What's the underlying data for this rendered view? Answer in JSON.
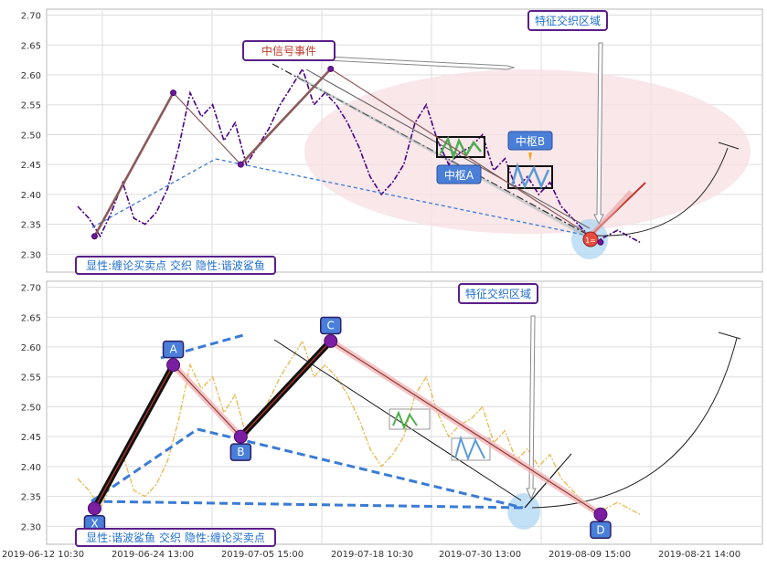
{
  "chart_data": [
    {
      "type": "line",
      "panel": "top",
      "ylim": [
        2.27,
        2.71
      ],
      "y_ticks": [
        "2.70",
        "2.65",
        "2.60",
        "2.55",
        "2.50",
        "2.45",
        "2.40",
        "2.35",
        "2.30"
      ],
      "y_tick_values": [
        2.7,
        2.65,
        2.6,
        2.55,
        2.5,
        2.45,
        2.4,
        2.35,
        2.3
      ],
      "grid": true,
      "price_series": {
        "x": [
          0,
          2,
          4,
          6,
          8,
          10,
          12,
          14,
          16,
          18,
          20,
          22,
          24,
          26,
          28,
          30,
          32,
          34,
          36,
          38,
          40,
          42,
          44,
          46,
          48,
          50,
          52,
          54,
          56,
          58,
          60,
          62,
          64,
          66,
          68,
          70,
          72,
          74,
          76,
          78,
          80,
          82,
          84,
          86,
          88,
          90,
          92,
          94,
          96,
          98,
          100
        ],
        "y": [
          2.38,
          2.36,
          2.33,
          2.37,
          2.42,
          2.36,
          2.35,
          2.37,
          2.41,
          2.48,
          2.57,
          2.53,
          2.55,
          2.49,
          2.52,
          2.45,
          2.48,
          2.51,
          2.55,
          2.58,
          2.61,
          2.55,
          2.57,
          2.55,
          2.52,
          2.48,
          2.43,
          2.4,
          2.42,
          2.45,
          2.52,
          2.55,
          2.49,
          2.45,
          2.47,
          2.48,
          2.5,
          2.44,
          2.46,
          2.41,
          2.43,
          2.4,
          2.42,
          2.38,
          2.36,
          2.34,
          2.32,
          2.33,
          2.34,
          2.33,
          2.32
        ]
      },
      "chan_points": {
        "labels": [
          "",
          "",
          "",
          "",
          ""
        ],
        "x": [
          3,
          17,
          29,
          45,
          93
        ],
        "y": [
          2.33,
          2.57,
          2.45,
          2.61,
          2.32
        ]
      },
      "annotations": {
        "signal_label": "中信号事件",
        "zone_label": "特征交织区域",
        "center_a": "中枢A",
        "center_b": "中枢B",
        "point_marker": "1=",
        "legend_box": "显性:缠论买卖点 交织 隐性:谐波鲨鱼"
      }
    },
    {
      "type": "line",
      "panel": "bottom",
      "ylim": [
        2.27,
        2.71
      ],
      "y_ticks": [
        "2.70",
        "2.65",
        "2.60",
        "2.55",
        "2.50",
        "2.45",
        "2.40",
        "2.35",
        "2.30"
      ],
      "y_tick_values": [
        2.7,
        2.65,
        2.6,
        2.55,
        2.5,
        2.45,
        2.4,
        2.35,
        2.3
      ],
      "x_ticks": [
        "2019-06-12 10:30",
        "2019-06-24 13:00",
        "2019-07-05 15:00",
        "2019-07-18 10:30",
        "2019-07-30 13:00",
        "2019-08-09 15:00",
        "2019-08-21 14:00"
      ],
      "grid": true,
      "price_series": {
        "x": [
          0,
          2,
          4,
          6,
          8,
          10,
          12,
          14,
          16,
          18,
          20,
          22,
          24,
          26,
          28,
          30,
          32,
          34,
          36,
          38,
          40,
          42,
          44,
          46,
          48,
          50,
          52,
          54,
          56,
          58,
          60,
          62,
          64,
          66,
          68,
          70,
          72,
          74,
          76,
          78,
          80,
          82,
          84,
          86,
          88,
          90,
          92,
          94,
          96,
          98,
          100
        ],
        "y": [
          2.38,
          2.36,
          2.33,
          2.37,
          2.42,
          2.36,
          2.35,
          2.37,
          2.41,
          2.48,
          2.57,
          2.53,
          2.55,
          2.49,
          2.52,
          2.45,
          2.48,
          2.51,
          2.55,
          2.58,
          2.61,
          2.55,
          2.57,
          2.55,
          2.52,
          2.48,
          2.43,
          2.4,
          2.42,
          2.45,
          2.52,
          2.55,
          2.49,
          2.45,
          2.47,
          2.48,
          2.5,
          2.44,
          2.46,
          2.41,
          2.43,
          2.4,
          2.42,
          2.38,
          2.36,
          2.34,
          2.32,
          2.33,
          2.34,
          2.33,
          2.32
        ]
      },
      "chan_points": {
        "labels": [
          "X",
          "A",
          "B",
          "C",
          "D"
        ],
        "x": [
          3,
          17,
          29,
          45,
          93
        ],
        "y": [
          2.33,
          2.57,
          2.45,
          2.61,
          2.32
        ]
      },
      "annotations": {
        "zone_label": "特征交织区域",
        "legend_box": "显性:谐波鲨鱼 交织 隐性:缠论买卖点"
      }
    }
  ],
  "colors": {
    "top_price": "#4b0082",
    "bottom_price": "#e8b84a",
    "bi_line": "#8b5a5a",
    "dashed_blue": "#3a7bd5",
    "box_border": "#5a1f8a",
    "label_blue": "#1f6fd0",
    "center_bg": "#4a7fd9",
    "ellipse": "#f7dfe3"
  }
}
